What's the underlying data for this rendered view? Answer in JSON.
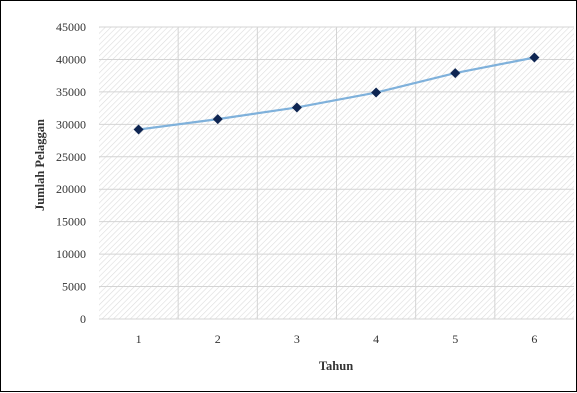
{
  "chart_data": {
    "type": "line",
    "xlabel": "Tahun",
    "ylabel": "Jumlah Pelaggan",
    "x": [
      1,
      2,
      3,
      4,
      5,
      6
    ],
    "x_tick_labels": [
      "1",
      "2",
      "3",
      "4",
      "5",
      "6"
    ],
    "y_tick_labels": [
      "0",
      "5000",
      "10000",
      "15000",
      "20000",
      "25000",
      "30000",
      "35000",
      "40000",
      "45000"
    ],
    "ylim": [
      0,
      45000
    ],
    "series": [
      {
        "values": [
          29200,
          30800,
          32600,
          34900,
          37900,
          40300
        ]
      }
    ],
    "grid": true,
    "legend": "none",
    "line_color": "#7FB1DB",
    "marker_color": "#0E2552",
    "marker_shape": "diamond"
  }
}
